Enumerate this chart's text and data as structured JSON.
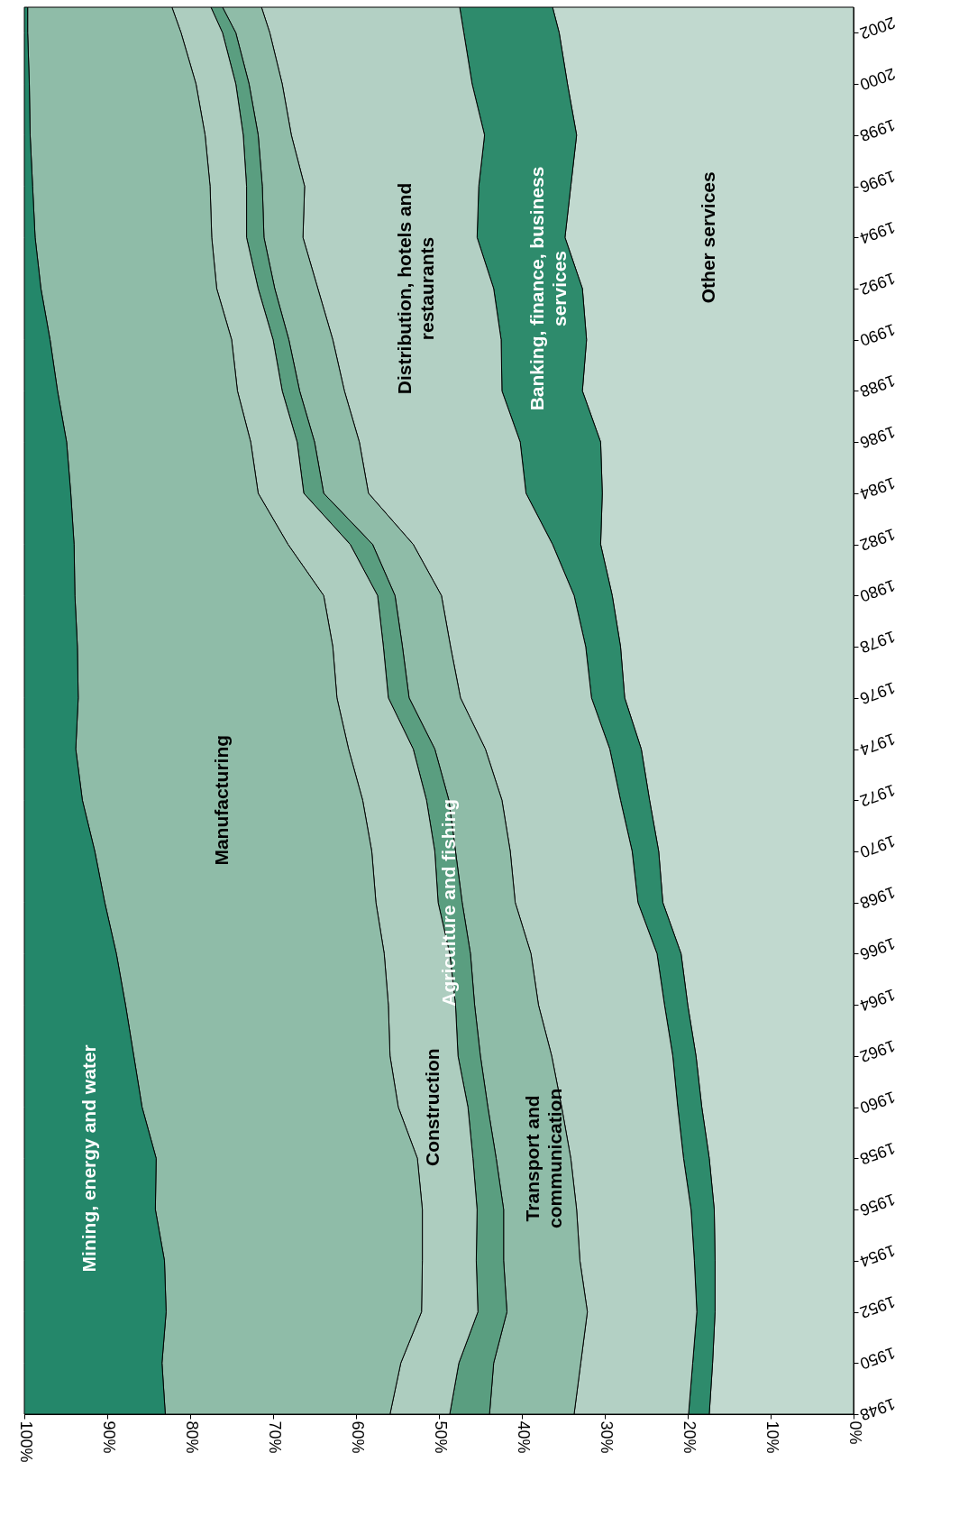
{
  "chart_data": {
    "type": "area",
    "stacked": true,
    "orientation": "horizontal",
    "legend": false,
    "grid": false,
    "x": [
      1948,
      1950,
      1952,
      1954,
      1956,
      1958,
      1960,
      1962,
      1964,
      1966,
      1968,
      1970,
      1972,
      1974,
      1976,
      1978,
      1980,
      1982,
      1984,
      1986,
      1988,
      1990,
      1992,
      1994,
      1996,
      1998,
      2000,
      2002,
      2003
    ],
    "xlim": [
      100,
      0
    ],
    "xticks": [
      {
        "value": 100,
        "label": "100%"
      },
      {
        "value": 90,
        "label": "90%"
      },
      {
        "value": 80,
        "label": "80%"
      },
      {
        "value": 70,
        "label": "70%"
      },
      {
        "value": 60,
        "label": "60%"
      },
      {
        "value": 50,
        "label": "50%"
      },
      {
        "value": 40,
        "label": "40%"
      },
      {
        "value": 30,
        "label": "30%"
      },
      {
        "value": 20,
        "label": "20%"
      },
      {
        "value": 10,
        "label": "10%"
      },
      {
        "value": 0,
        "label": "0%"
      }
    ],
    "ylim": [
      1948,
      2003
    ],
    "yticks": [
      1948,
      1950,
      1952,
      1954,
      1956,
      1958,
      1960,
      1962,
      1964,
      1966,
      1968,
      1970,
      1972,
      1974,
      1976,
      1978,
      1980,
      1982,
      1984,
      1986,
      1988,
      1990,
      1992,
      1994,
      1996,
      1998,
      2000,
      2002
    ],
    "series": [
      {
        "name": "Other services",
        "color": "#c1d9cf",
        "values": [
          17.4,
          17.0,
          16.7,
          16.7,
          16.8,
          17.4,
          18.3,
          19.0,
          20.0,
          20.8,
          23.0,
          23.5,
          24.6,
          25.6,
          27.6,
          28.1,
          29.1,
          30.5,
          30.3,
          30.5,
          32.7,
          32.2,
          32.7,
          34.8,
          34.1,
          33.4,
          34.5,
          35.5,
          36.3
        ]
      },
      {
        "name": "Banking, finance, business services",
        "color": "#2e8b6c",
        "values": [
          2.5,
          2.4,
          2.2,
          2.5,
          2.8,
          3.1,
          2.9,
          2.8,
          2.8,
          2.9,
          3.0,
          3.2,
          3.5,
          3.8,
          4.0,
          4.2,
          4.6,
          5.8,
          9.2,
          9.7,
          9.7,
          10.3,
          10.7,
          10.6,
          11.1,
          11.1,
          11.5,
          11.5,
          11.2
        ]
      },
      {
        "name": "Distribution, hotels and restaurants",
        "color": "#b3d0c4",
        "values": [
          13.8,
          13.5,
          13.2,
          13.8,
          13.8,
          13.6,
          14.0,
          14.6,
          15.2,
          15.2,
          14.8,
          14.7,
          14.3,
          15.0,
          15.8,
          16.3,
          16.0,
          16.8,
          19.0,
          19.4,
          19.0,
          20.3,
          21.2,
          21.0,
          21.0,
          23.3,
          22.9,
          23.4,
          23.9
        ]
      },
      {
        "name": "Transport and communication",
        "color": "#8fbca8",
        "values": [
          10.2,
          10.5,
          9.7,
          9.2,
          8.8,
          9.0,
          8.9,
          8.6,
          7.7,
          7.3,
          6.4,
          6.6,
          6.4,
          6.1,
          6.2,
          5.8,
          5.6,
          4.9,
          5.4,
          5.4,
          5.4,
          5.3,
          5.2,
          4.7,
          5.1,
          4.0,
          4.0,
          4.1,
          4.7
        ]
      },
      {
        "name": "Agriculture and fishing",
        "color": "#5a9e80",
        "values": [
          4.8,
          4.2,
          3.5,
          3.3,
          3.2,
          2.8,
          2.4,
          2.7,
          2.3,
          2.5,
          2.9,
          2.5,
          2.7,
          2.6,
          2.5,
          2.3,
          2.1,
          2.7,
          2.4,
          2.1,
          2.1,
          1.9,
          2.0,
          2.1,
          1.9,
          1.8,
          1.6,
          1.6,
          1.4
        ]
      },
      {
        "name": "Construction",
        "color": "#adcdbf",
        "values": [
          7.2,
          7.0,
          6.8,
          6.5,
          6.6,
          6.7,
          8.4,
          8.2,
          8.1,
          7.9,
          7.5,
          7.6,
          7.7,
          7.8,
          6.2,
          6.1,
          6.5,
          7.5,
          5.5,
          5.6,
          5.4,
          5.0,
          5.0,
          4.2,
          4.4,
          4.6,
          4.8,
          5.0,
          4.7
        ]
      },
      {
        "name": "Manufacturing",
        "color": "#8fbca8",
        "values": [
          27.1,
          28.8,
          30.8,
          31.1,
          32.2,
          31.5,
          30.9,
          30.9,
          31.7,
          32.3,
          32.7,
          33.4,
          33.8,
          32.9,
          31.2,
          30.8,
          30.0,
          25.8,
          22.6,
          22.2,
          21.7,
          21.9,
          21.2,
          21.3,
          21.4,
          21.1,
          20.1,
          18.5,
          17.4
        ]
      },
      {
        "name": "Mining, energy and water",
        "color": "#24876a",
        "values": [
          17.0,
          16.6,
          17.1,
          16.9,
          15.8,
          15.9,
          14.2,
          13.2,
          12.2,
          11.1,
          9.7,
          8.5,
          7.0,
          6.2,
          6.5,
          6.4,
          6.1,
          6.0,
          5.6,
          5.1,
          4.0,
          3.1,
          2.0,
          1.3,
          1.0,
          0.7,
          0.6,
          0.4,
          0.4
        ]
      }
    ]
  }
}
